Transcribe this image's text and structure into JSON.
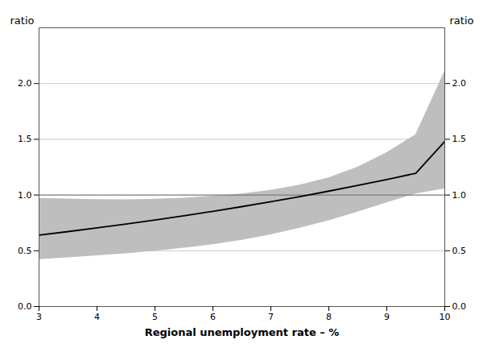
{
  "chart_data": {
    "type": "line",
    "xlabel": "Regional unemployment rate – %",
    "ylabel": "ratio",
    "y2label": "ratio",
    "x": [
      3.0,
      3.5,
      4.0,
      4.5,
      5.0,
      5.5,
      6.0,
      6.5,
      7.0,
      7.5,
      8.0,
      8.5,
      9.0,
      9.5,
      10.0
    ],
    "series": [
      {
        "type": "area",
        "color": "#bebebe",
        "lower": [
          0.42,
          0.438,
          0.455,
          0.473,
          0.496,
          0.524,
          0.555,
          0.595,
          0.643,
          0.702,
          0.77,
          0.848,
          0.93,
          1.01,
          1.055
        ],
        "upper": [
          0.97,
          0.965,
          0.96,
          0.958,
          0.962,
          0.972,
          0.99,
          1.01,
          1.043,
          1.09,
          1.155,
          1.25,
          1.38,
          1.54,
          2.11
        ]
      },
      {
        "type": "line",
        "color": "#555555",
        "x": [
          3,
          10
        ],
        "values": [
          1.0,
          1.0
        ]
      },
      {
        "type": "line",
        "color": "#000000",
        "values": [
          0.64,
          0.672,
          0.705,
          0.74,
          0.776,
          0.814,
          0.854,
          0.896,
          0.94,
          0.986,
          1.035,
          1.086,
          1.139,
          1.195,
          1.48
        ]
      }
    ],
    "xlim": [
      3,
      10
    ],
    "xticks": [
      3,
      4,
      5,
      6,
      7,
      8,
      9,
      10
    ],
    "ylim": [
      0.0,
      2.5
    ],
    "yticks": [
      {
        "value": 0.0,
        "label": "0.0"
      },
      0.5,
      {
        "value": 1.0,
        "label": "1.0"
      },
      1.5,
      {
        "value": 2.0,
        "label": "2.0"
      }
    ],
    "y2lim": [
      0.0,
      2.5
    ],
    "y2ticks": [
      {
        "value": 0.0,
        "label": "0.0"
      },
      0.5,
      {
        "value": 1.0,
        "label": "1.0"
      },
      1.5,
      {
        "value": 2.0,
        "label": "2.0"
      }
    ],
    "grid": "y"
  }
}
